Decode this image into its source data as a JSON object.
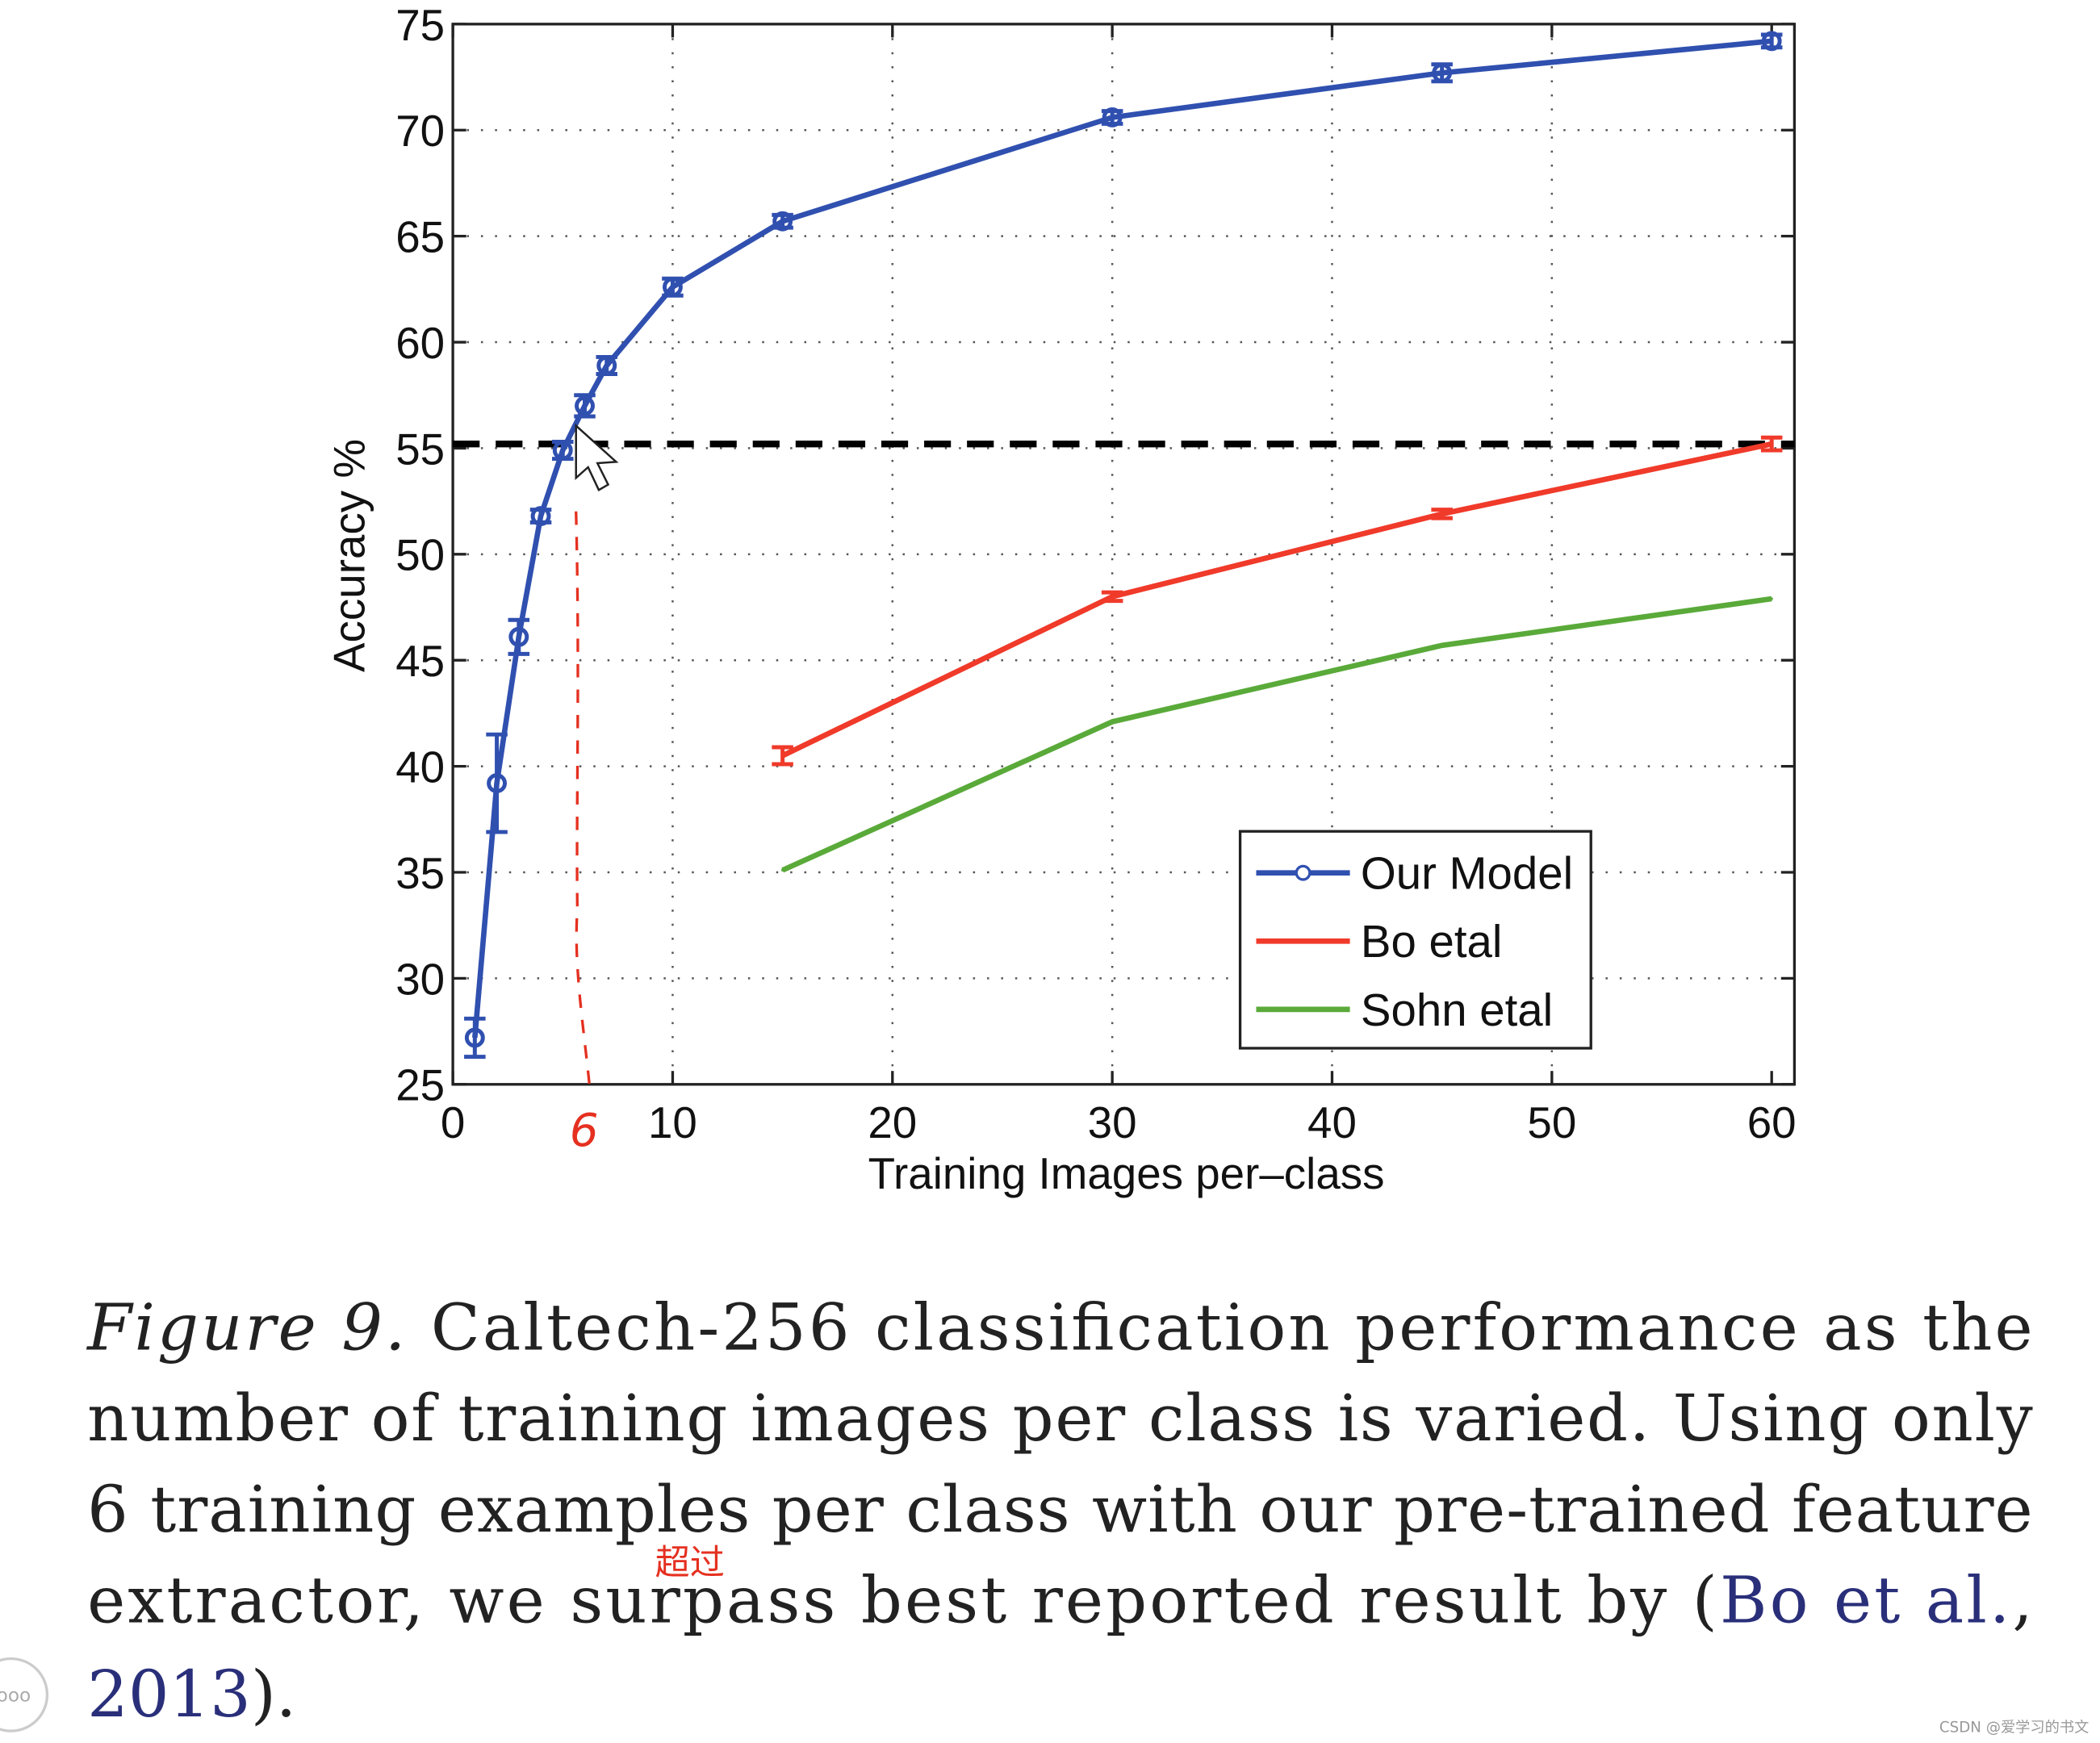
{
  "chart_data": {
    "type": "line",
    "title": "",
    "xlabel": "Training Images per–class",
    "ylabel": "Accuracy %",
    "xlim": [
      0,
      60
    ],
    "ylim": [
      25,
      75
    ],
    "xticks": [
      "0",
      "10",
      "20",
      "30",
      "40",
      "50",
      "60"
    ],
    "yticks": [
      "25",
      "30",
      "35",
      "40",
      "45",
      "50",
      "55",
      "60",
      "65",
      "70",
      "75"
    ],
    "grid": true,
    "legend_position": "bottom-right",
    "series": [
      {
        "name": "Our Model",
        "color": "#3050b0",
        "marker": "circle",
        "x": [
          1,
          2,
          3,
          4,
          5,
          6,
          7,
          10,
          15,
          30,
          45,
          60
        ],
        "y": [
          27.2,
          39.2,
          46.1,
          51.8,
          54.9,
          57.0,
          58.9,
          62.6,
          65.7,
          70.6,
          72.7,
          74.2
        ],
        "err": [
          0.9,
          2.3,
          0.8,
          0.3,
          0.4,
          0.5,
          0.4,
          0.4,
          0.3,
          0.3,
          0.4,
          0.3
        ]
      },
      {
        "name": "Bo etal",
        "color": "#f03a2a",
        "marker": "none",
        "x": [
          15,
          30,
          45,
          60
        ],
        "y": [
          40.5,
          48.0,
          51.9,
          55.2
        ],
        "err": [
          0.4,
          0.2,
          0.2,
          0.3
        ]
      },
      {
        "name": "Sohn etal",
        "color": "#5aaa3a",
        "marker": "none",
        "x": [
          15,
          30,
          45,
          60
        ],
        "y": [
          35.1,
          42.1,
          45.7,
          47.9
        ]
      }
    ],
    "reference_line": {
      "y": 55.2,
      "style": "dashed",
      "color": "#000000"
    },
    "annotations": {
      "handwritten_x_mark": "6",
      "handwritten_x_value": 6,
      "handwritten_color": "#e53020"
    }
  },
  "caption": {
    "lines": [
      [
        {
          "t": "Figure 9.",
          "style": "italic"
        },
        {
          "t": " Caltech-256 classification performance as the"
        }
      ],
      [
        {
          "t": "number of training images per class is varied. Using only"
        }
      ],
      [
        {
          "t": "6 training examples per class with our pre-trained feature"
        }
      ],
      [
        {
          "t": "extractor, we surpass best reported result by ("
        },
        {
          "t": "Bo et al.",
          "style": "link"
        },
        {
          "t": ","
        }
      ],
      [
        {
          "t": "2013",
          "style": "link"
        },
        {
          "t": ")."
        }
      ]
    ],
    "handwritten_note": "超过"
  },
  "watermark": "CSDN @爱学习的书文",
  "ui": {
    "more_button_icon": "more-dots-icon"
  }
}
